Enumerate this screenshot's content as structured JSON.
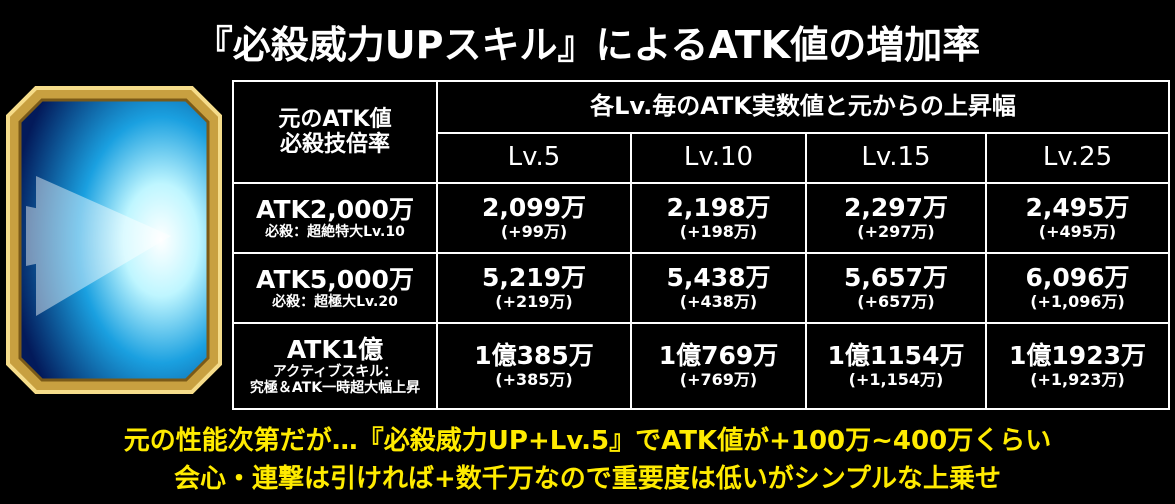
{
  "title": "『必殺威力UPスキル』によるATK値の増加率",
  "table": {
    "corner": [
      "元のATK値",
      "必殺技倍率"
    ],
    "group_header": "各Lv.毎のATK実数値と元からの上昇幅",
    "levels": [
      "Lv.5",
      "Lv.10",
      "Lv.15",
      "Lv.25"
    ],
    "rows": [
      {
        "base": "ATK2,000万",
        "skill": [
          "必殺：超絶特大Lv.10"
        ],
        "cells": [
          {
            "value": "2,099万",
            "gain": "(+99万)"
          },
          {
            "value": "2,198万",
            "gain": "(+198万)"
          },
          {
            "value": "2,297万",
            "gain": "(+297万)"
          },
          {
            "value": "2,495万",
            "gain": "(+495万)"
          }
        ]
      },
      {
        "base": "ATK5,000万",
        "skill": [
          "必殺：超極大Lv.20"
        ],
        "cells": [
          {
            "value": "5,219万",
            "gain": "(+219万)"
          },
          {
            "value": "5,438万",
            "gain": "(+438万)"
          },
          {
            "value": "5,657万",
            "gain": "(+657万)"
          },
          {
            "value": "6,096万",
            "gain": "(+1,096万)"
          }
        ]
      },
      {
        "base": "ATK1億",
        "skill": [
          "アクティブスキル：",
          "究極＆ATK一時超大幅上昇"
        ],
        "cells": [
          {
            "value": "1億385万",
            "gain": "(+385万)"
          },
          {
            "value": "1億769万",
            "gain": "(+769万)"
          },
          {
            "value": "1億1154万",
            "gain": "(+1,154万)"
          },
          {
            "value": "1億1923万",
            "gain": "(+1,923万)"
          }
        ]
      }
    ]
  },
  "footer": [
    "元の性能次第だが…『必殺威力UP+Lv.5』でATK値が+100万~400万くらい",
    "会心・連撃は引ければ+数千万なので重要度は低いがシンプルな上乗せ"
  ]
}
